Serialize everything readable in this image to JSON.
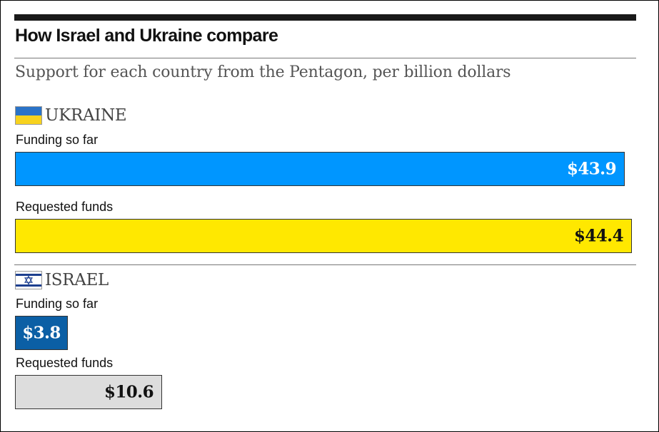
{
  "chart_data": {
    "type": "bar",
    "title": "How Israel and Ukraine compare",
    "subtitle": "Support for each country from the Pentagon, per billion dollars",
    "value_prefix": "$",
    "scale_max": 44.4,
    "groups": [
      {
        "country": "UKRAINE",
        "flag": "ukraine-flag-icon",
        "bars": [
          {
            "label": "Funding so far",
            "value": 43.9,
            "display": "$43.9",
            "color": "#0096ff",
            "text_color": "#ffffff"
          },
          {
            "label": "Requested funds",
            "value": 44.4,
            "display": "$44.4",
            "color": "#ffe800",
            "text_color": "#111111"
          }
        ]
      },
      {
        "country": "ISRAEL",
        "flag": "israel-flag-icon",
        "bars": [
          {
            "label": "Funding so far",
            "value": 3.8,
            "display": "$3.8",
            "color": "#0b5fa5",
            "text_color": "#ffffff"
          },
          {
            "label": "Requested funds",
            "value": 10.6,
            "display": "$10.6",
            "color": "#dddddd",
            "text_color": "#111111"
          }
        ]
      }
    ]
  }
}
